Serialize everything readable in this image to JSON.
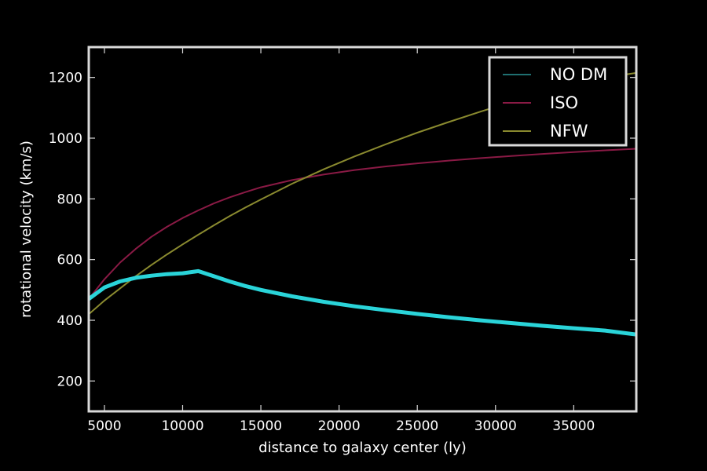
{
  "chart_data": {
    "type": "line",
    "title": "",
    "xlabel": "distance to galaxy center (ly)",
    "ylabel": "rotational velocity (km/s)",
    "xlim": [
      4000,
      39000
    ],
    "ylim": [
      100,
      1300
    ],
    "xticks": [
      5000,
      10000,
      15000,
      20000,
      25000,
      30000,
      35000
    ],
    "yticks": [
      200,
      400,
      600,
      800,
      1000,
      1200
    ],
    "grid": false,
    "legend_position": "top-right",
    "background": "#000000",
    "axes_color": "#d9d9d9",
    "series": [
      {
        "name": "NO DM",
        "color": "#2ad4d9",
        "legend_color": "#1f6f70",
        "x": [
          4000,
          5000,
          6000,
          7000,
          8000,
          9000,
          10000,
          11000,
          12000,
          13000,
          14000,
          15000,
          17000,
          19000,
          21000,
          23000,
          25000,
          27000,
          29000,
          31000,
          33000,
          35000,
          37000,
          39000
        ],
        "y": [
          470,
          508,
          528,
          540,
          547,
          552,
          555,
          562,
          545,
          528,
          513,
          500,
          479,
          461,
          446,
          433,
          421,
          410,
          400,
          391,
          382,
          374,
          366,
          353
        ]
      },
      {
        "name": "ISO",
        "color": "#8a1a45",
        "x": [
          4000,
          5000,
          6000,
          7000,
          8000,
          9000,
          10000,
          11000,
          12000,
          13000,
          14000,
          15000,
          17000,
          19000,
          21000,
          23000,
          25000,
          27000,
          29000,
          31000,
          33000,
          35000,
          37000,
          39000
        ],
        "y": [
          470,
          535,
          590,
          635,
          675,
          708,
          737,
          762,
          785,
          805,
          822,
          838,
          862,
          880,
          895,
          907,
          917,
          926,
          934,
          941,
          948,
          954,
          960,
          965
        ]
      },
      {
        "name": "NFW",
        "color": "#8a8a2f",
        "x": [
          4000,
          5000,
          6000,
          7000,
          8000,
          9000,
          10000,
          11000,
          12000,
          13000,
          14000,
          15000,
          17000,
          19000,
          21000,
          23000,
          25000,
          27000,
          29000,
          31000,
          33000,
          35000,
          37000,
          39000
        ],
        "y": [
          420,
          465,
          505,
          545,
          582,
          617,
          650,
          682,
          713,
          743,
          771,
          798,
          850,
          897,
          940,
          980,
          1018,
          1053,
          1087,
          1119,
          1149,
          1178,
          1200,
          1215
        ]
      }
    ]
  }
}
